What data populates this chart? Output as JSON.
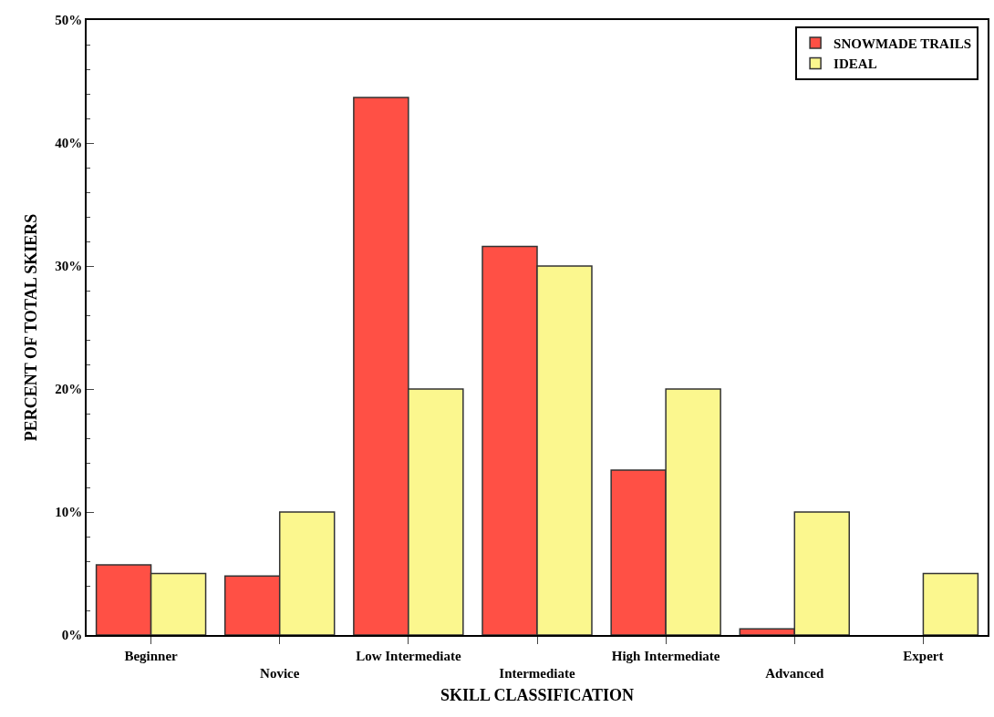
{
  "chart_data": {
    "type": "bar",
    "xlabel": "SKILL CLASSIFICATION",
    "ylabel": "PERCENT OF TOTAL SKIERS",
    "categories": [
      "Beginner",
      "Novice",
      "Low Intermediate",
      "Intermediate",
      "High Intermediate",
      "Advanced",
      "Expert"
    ],
    "series": [
      {
        "name": "SNOWMADE TRAILS",
        "color": "#ff5045",
        "values": [
          5.7,
          4.8,
          43.7,
          31.6,
          13.4,
          0.5,
          null
        ]
      },
      {
        "name": "IDEAL",
        "color": "#fbf78e",
        "values": [
          5,
          10,
          20,
          30,
          20,
          10,
          5
        ]
      }
    ],
    "ylim": [
      0,
      50
    ],
    "yticks": [
      {
        "value": 0,
        "label": "0%"
      },
      {
        "value": 10,
        "label": "10%"
      },
      {
        "value": 20,
        "label": "20%"
      },
      {
        "value": 30,
        "label": "30%"
      },
      {
        "value": 40,
        "label": "40%"
      },
      {
        "value": 50,
        "label": "50%"
      }
    ],
    "legend": "top right"
  }
}
